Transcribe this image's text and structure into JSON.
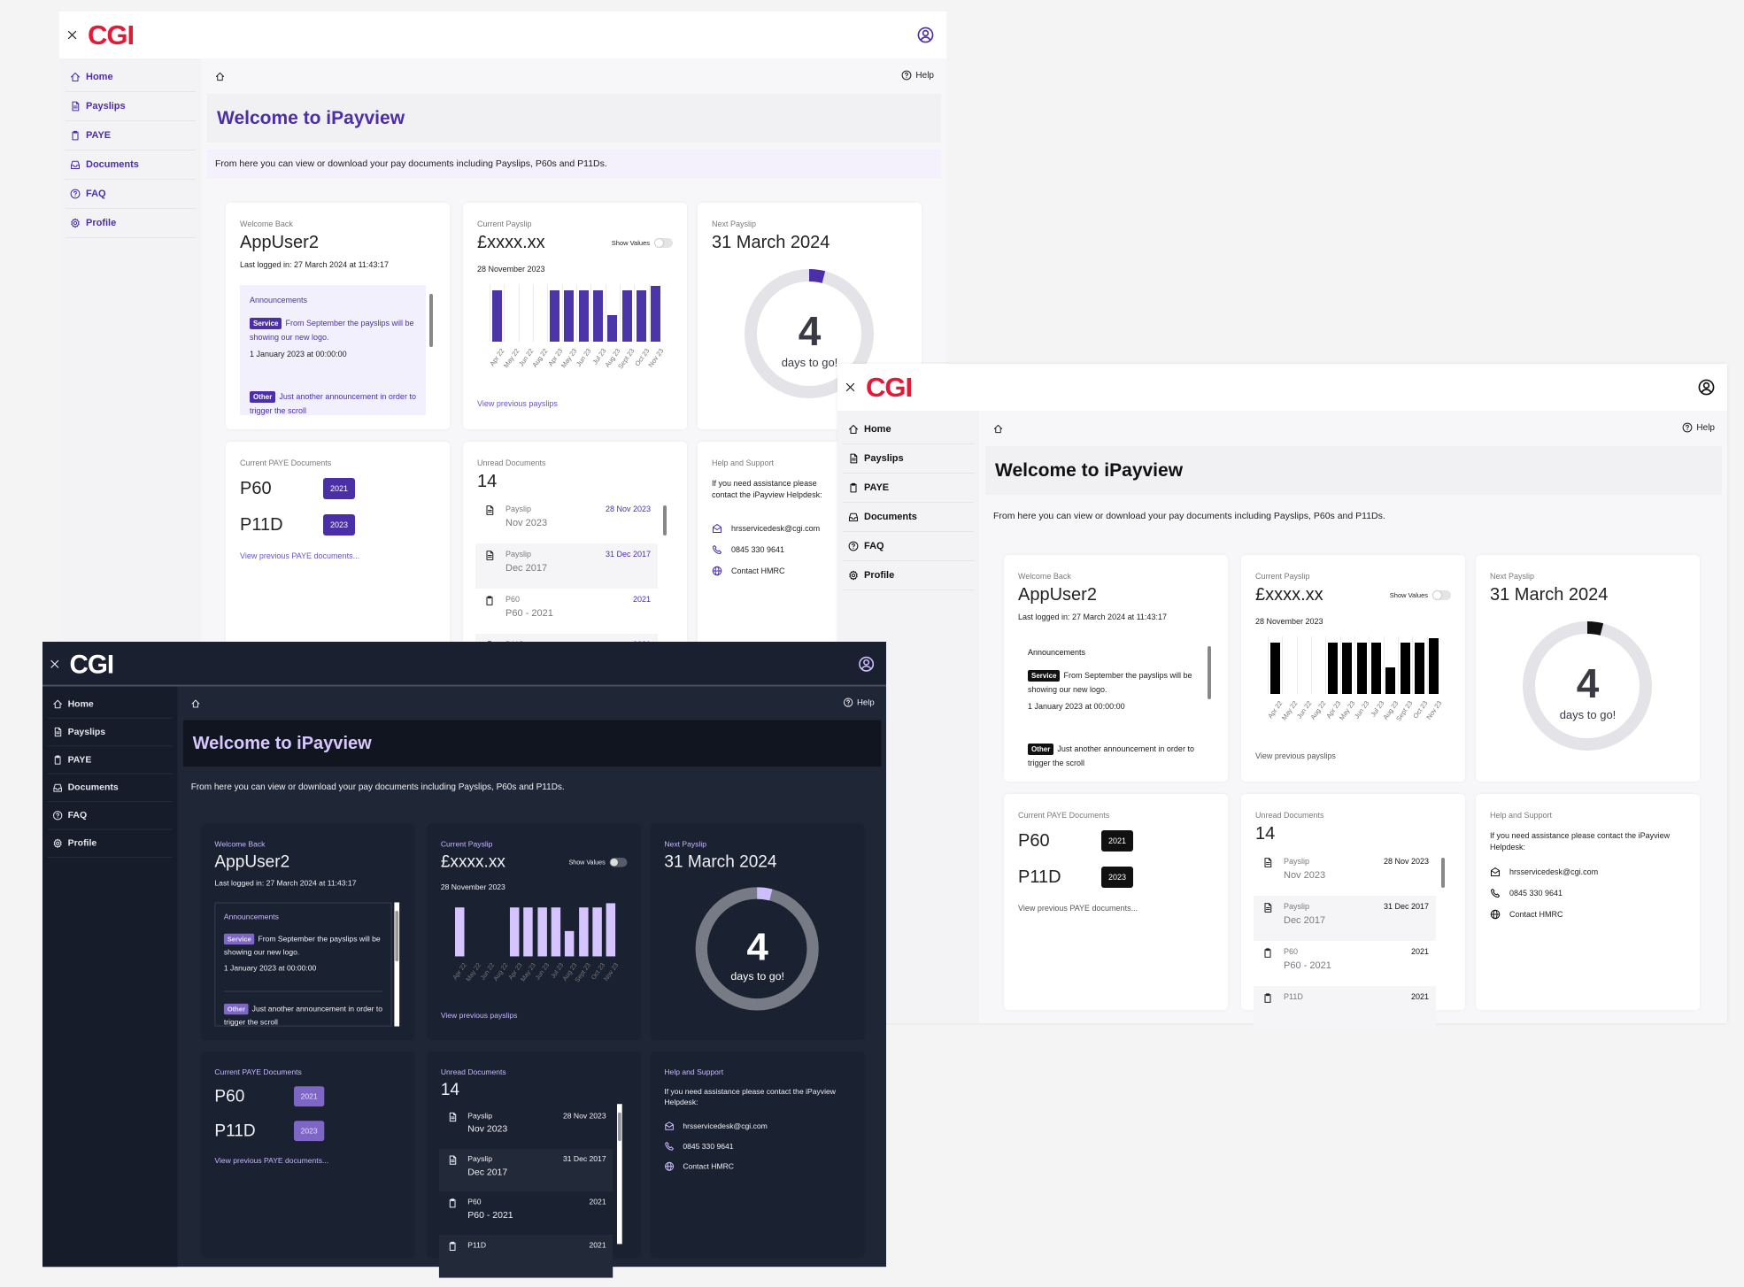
{
  "brand": {
    "logo": "CGI"
  },
  "colors": {
    "brand_red": "#e31937",
    "purple_accent": "#4b2fa8",
    "mono_accent": "#111111",
    "dark_accent": "#cdbdfd",
    "dark_background": "#1f2636"
  },
  "header": {
    "close_icon": "close-icon",
    "profile_icon": "user-circle-icon"
  },
  "sidebar": {
    "items": [
      {
        "label": "Home",
        "icon": "home-icon"
      },
      {
        "label": "Payslips",
        "icon": "document-icon"
      },
      {
        "label": "PAYE",
        "icon": "clipboard-icon"
      },
      {
        "label": "Documents",
        "icon": "inbox-icon"
      },
      {
        "label": "FAQ",
        "icon": "help-circle-icon"
      },
      {
        "label": "Profile",
        "icon": "gear-icon"
      }
    ]
  },
  "breadcrumb": {
    "home_icon": "home-icon"
  },
  "help": {
    "label": "Help",
    "icon": "help-circle-icon"
  },
  "page": {
    "title": "Welcome to iPayview",
    "description": "From here you can view or download your pay documents including Payslips, P60s and P11Ds."
  },
  "welcome_card": {
    "label": "Welcome Back",
    "username": "AppUser2",
    "last_logged_in": "Last logged in: 27 March 2024 at 11:43:17",
    "announcements": {
      "title": "Announcements",
      "items": [
        {
          "tag": "Service",
          "text": "From September the payslips will be showing our new logo.",
          "date": "1 January 2023 at 00:00:00"
        },
        {
          "tag": "Other",
          "text": "Just another announcement in order to trigger the scroll"
        }
      ]
    }
  },
  "payslip_card": {
    "label": "Current Payslip",
    "amount": "£xxxx.xx",
    "show_values_label": "Show Values",
    "show_values": false,
    "date": "28 November 2023",
    "link": "View previous payslips"
  },
  "next_payslip_card": {
    "label": "Next Payslip",
    "date": "31 March 2024",
    "days": "4",
    "days_label": "days to go!",
    "progress": 0.04
  },
  "paye_card": {
    "label": "Current PAYE Documents",
    "docs": [
      {
        "name": "P60",
        "year": "2021"
      },
      {
        "name": "P11D",
        "year": "2023"
      }
    ],
    "link": "View previous PAYE documents..."
  },
  "unread_card": {
    "label": "Unread Documents",
    "count": "14",
    "items": [
      {
        "type": "Payslip",
        "title": "Nov 2023",
        "date": "28 Nov 2023",
        "icon": "document-icon"
      },
      {
        "type": "Payslip",
        "title": "Dec 2017",
        "date": "31 Dec 2017",
        "icon": "document-icon"
      },
      {
        "type": "P60",
        "title": "P60 - 2021",
        "date": "2021",
        "icon": "clipboard-icon"
      },
      {
        "type": "P11D",
        "date": "2021",
        "icon": "clipboard-icon"
      }
    ]
  },
  "help_card": {
    "label": "Help and Support",
    "text": "If you need assistance please contact the iPayview Helpdesk:",
    "email": "hrsservicedesk@cgi.com",
    "phone": "0845 330 9641",
    "hmrc": "Contact HMRC"
  },
  "chart_data": {
    "type": "bar",
    "categories": [
      "Apr 22",
      "May 22",
      "Jun 22",
      "Aug 22",
      "Apr 23",
      "May 23",
      "Jun 23",
      "Jul 23",
      "Aug 23",
      "Sept 23",
      "Oct 23",
      "Nov 23"
    ],
    "values": [
      80,
      0,
      0,
      0,
      80,
      80,
      80,
      80,
      42,
      80,
      80,
      88
    ],
    "title": "",
    "xlabel": "",
    "ylabel": ""
  }
}
